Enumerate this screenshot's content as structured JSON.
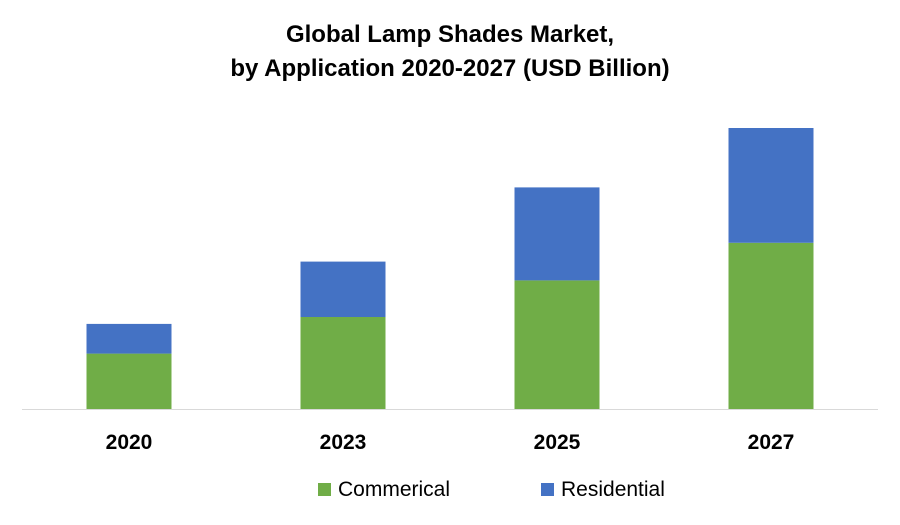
{
  "chart_data": {
    "type": "bar",
    "stacked": true,
    "title": "Global Lamp Shades Market,",
    "subtitle": "by Application 2020-2027 (USD Billion)",
    "categories": [
      "2020",
      "2023",
      "2025",
      "2027"
    ],
    "series": [
      {
        "name": "Commerical",
        "color": "#70AD47",
        "values": [
          5.6,
          9.3,
          13.0,
          16.8
        ]
      },
      {
        "name": "Residential",
        "color": "#4472C4",
        "values": [
          3.0,
          5.6,
          9.4,
          11.6
        ]
      }
    ],
    "ylim": [
      0,
      30
    ],
    "xlabel": "",
    "ylabel": "",
    "grid": false,
    "legend": "bottom"
  }
}
